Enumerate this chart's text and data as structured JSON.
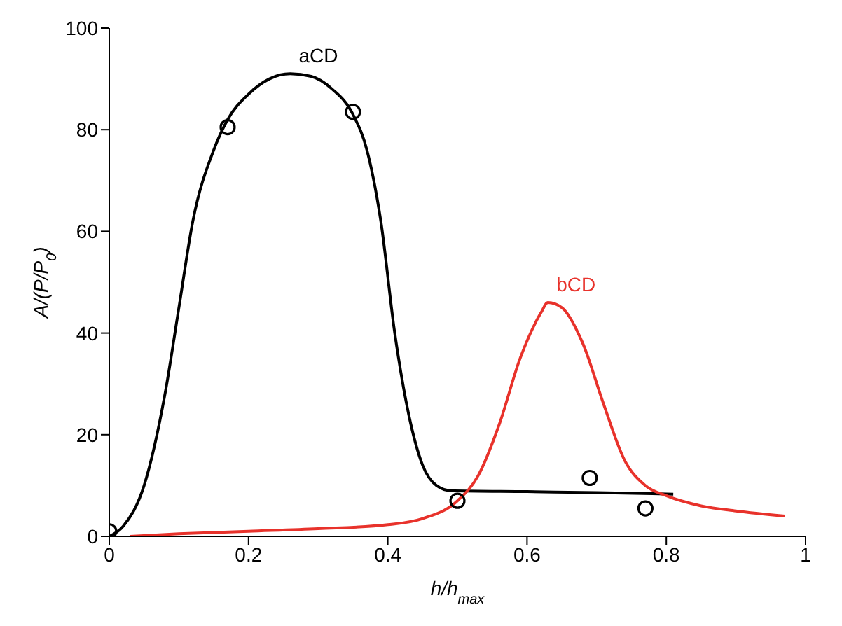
{
  "chart_data": {
    "type": "line",
    "xlabel": "h/h$_{max}$",
    "ylabel": "A/(P/P$_{0}$)",
    "xlim": [
      0,
      1
    ],
    "xticks": [
      0,
      0.2,
      0.4,
      0.6,
      0.8,
      1
    ],
    "ylim": [
      0,
      100
    ],
    "yticks": [
      0,
      20,
      40,
      60,
      80,
      100
    ],
    "grid": false,
    "legend": false,
    "marker": "none",
    "series": [
      {
        "name": "aCD",
        "color": "#000000",
        "x": [
          0,
          0.02,
          0.05,
          0.08,
          0.1,
          0.12,
          0.15,
          0.17,
          0.2,
          0.23,
          0.26,
          0.29,
          0.32,
          0.35,
          0.37,
          0.39,
          0.41,
          0.43,
          0.45,
          0.47,
          0.49,
          0.6,
          0.7,
          0.81
        ],
        "values": [
          0,
          2,
          10,
          28,
          45,
          62,
          76,
          82,
          87,
          90,
          91,
          90.5,
          88,
          83,
          76,
          62,
          40,
          24,
          14,
          10,
          9,
          8.8,
          8.6,
          8.3
        ]
      },
      {
        "name": "bCD",
        "color": "#e8322b",
        "x": [
          0.03,
          0.1,
          0.2,
          0.3,
          0.4,
          0.45,
          0.5,
          0.53,
          0.56,
          0.59,
          0.62,
          0.63,
          0.65,
          0.68,
          0.71,
          0.74,
          0.77,
          0.8,
          0.85,
          0.9,
          0.97
        ],
        "values": [
          0,
          0.5,
          1,
          1.5,
          2.3,
          3.5,
          7,
          12,
          22,
          35,
          44,
          46,
          45,
          38,
          26,
          15,
          10,
          8,
          6,
          5,
          4
        ]
      },
      {
        "type": "scatter",
        "marker": "circle",
        "color": "#000000",
        "x": [
          0,
          0.17,
          0.35,
          0.5,
          0.69,
          0.77
        ],
        "values": [
          1,
          80.5,
          83.5,
          7,
          11.5,
          5.5
        ]
      }
    ]
  }
}
